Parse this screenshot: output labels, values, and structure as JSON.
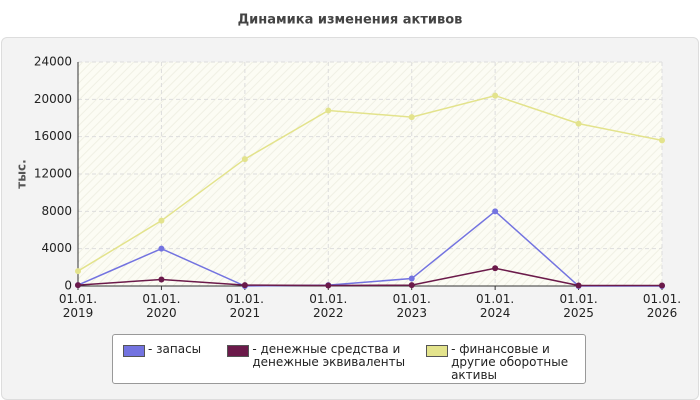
{
  "chart_data": {
    "type": "line",
    "title": "Динамика изменения активов",
    "y_label": "тыс.",
    "categories": [
      "01.01.\n2019",
      "01.01.\n2020",
      "01.01.\n2021",
      "01.01.\n2022",
      "01.01.\n2023",
      "01.01.\n2024",
      "01.01.\n2025",
      "01.01.\n2026"
    ],
    "series": [
      {
        "name": "- запасы",
        "color": "#7373e0",
        "values": [
          100,
          4000,
          0,
          100,
          800,
          8000,
          0,
          0
        ]
      },
      {
        "name": "- денежные средства и денежные эквиваленты",
        "color": "#6b1a4a",
        "values": [
          100,
          700,
          100,
          50,
          100,
          1900,
          50,
          50
        ]
      },
      {
        "name": "- финансовые и другие оборотные активы",
        "color": "#e3e38c",
        "values": [
          1600,
          7000,
          13600,
          18800,
          18100,
          20400,
          17400,
          15600
        ]
      }
    ],
    "ylim": [
      0,
      24000
    ],
    "yticks": [
      0,
      4000,
      8000,
      12000,
      16000,
      20000,
      24000
    ],
    "grid": true
  }
}
